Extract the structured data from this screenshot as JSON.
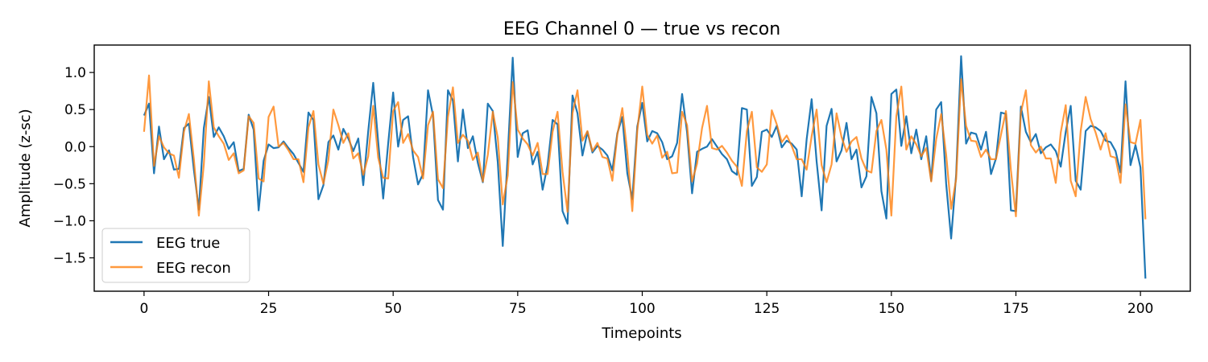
{
  "chart_data": {
    "type": "line",
    "title": "EEG Channel 0 — true vs recon",
    "xlabel": "Timepoints",
    "ylabel": "Amplitude (z-sc)",
    "xlim": [
      -10,
      210
    ],
    "ylim": [
      -1.95,
      1.37
    ],
    "xticks": [
      0,
      25,
      50,
      75,
      100,
      125,
      150,
      175,
      200
    ],
    "yticks": [
      -1.5,
      -1.0,
      -0.5,
      0.0,
      0.5,
      1.0
    ],
    "ytick_labels": [
      "−1.5",
      "−1.0",
      "−0.5",
      "0.0",
      "0.5",
      "1.0"
    ],
    "legend_position": "lower-left",
    "series": [
      {
        "name": "EEG true",
        "color": "#1f77b4",
        "values": [
          0.42,
          0.58,
          -0.36,
          0.27,
          -0.17,
          -0.05,
          -0.31,
          -0.3,
          0.25,
          0.31,
          -0.31,
          -0.85,
          0.25,
          0.67,
          0.13,
          0.26,
          0.14,
          -0.03,
          0.06,
          -0.33,
          -0.3,
          0.43,
          0.23,
          -0.86,
          -0.19,
          0.03,
          -0.02,
          -0.01,
          0.07,
          -0.02,
          -0.1,
          -0.22,
          -0.34,
          0.46,
          0.36,
          -0.71,
          -0.52,
          0.06,
          0.15,
          -0.04,
          0.24,
          0.11,
          -0.06,
          0.11,
          -0.52,
          0.21,
          0.86,
          0.06,
          -0.7,
          0.04,
          0.73,
          0.0,
          0.36,
          0.41,
          -0.14,
          -0.51,
          -0.37,
          0.76,
          0.42,
          -0.72,
          -0.85,
          0.76,
          0.62,
          -0.2,
          0.5,
          -0.02,
          0.14,
          -0.22,
          -0.48,
          0.58,
          0.48,
          -0.21,
          -1.34,
          -0.11,
          1.2,
          -0.14,
          0.18,
          0.22,
          -0.24,
          -0.07,
          -0.58,
          -0.25,
          0.36,
          0.3,
          -0.87,
          -1.04,
          0.69,
          0.45,
          -0.12,
          0.2,
          -0.08,
          0.01,
          -0.04,
          -0.12,
          -0.32,
          0.18,
          0.4,
          -0.36,
          -0.71,
          0.27,
          0.59,
          0.07,
          0.21,
          0.18,
          0.06,
          -0.17,
          -0.13,
          0.05,
          0.71,
          0.19,
          -0.63,
          -0.07,
          -0.03,
          0.0,
          0.1,
          0.0,
          -0.1,
          -0.17,
          -0.33,
          -0.38,
          0.52,
          0.5,
          -0.53,
          -0.41,
          0.2,
          0.23,
          0.13,
          0.28,
          -0.01,
          0.08,
          0.04,
          -0.04,
          -0.67,
          0.1,
          0.64,
          -0.2,
          -0.86,
          0.28,
          0.51,
          -0.2,
          -0.05,
          0.32,
          -0.17,
          -0.04,
          -0.55,
          -0.4,
          0.67,
          0.45,
          -0.6,
          -0.97,
          0.71,
          0.77,
          0.01,
          0.41,
          -0.09,
          0.23,
          -0.17,
          0.14,
          -0.46,
          0.5,
          0.6,
          -0.5,
          -1.24,
          -0.38,
          1.22,
          0.04,
          0.19,
          0.17,
          -0.04,
          0.2,
          -0.37,
          -0.16,
          0.46,
          0.44,
          -0.86,
          -0.87,
          0.54,
          0.2,
          0.06,
          0.17,
          -0.09,
          -0.01,
          0.03,
          -0.06,
          -0.27,
          0.2,
          0.55,
          -0.46,
          -0.58,
          0.21,
          0.28,
          0.26,
          0.21,
          0.08,
          0.06,
          -0.06,
          -0.35,
          0.88,
          -0.25,
          0.02,
          -0.28,
          -1.78
        ]
      },
      {
        "name": "EEG recon",
        "color": "#ff7f0e",
        "values": [
          0.2,
          0.96,
          -0.26,
          0.14,
          -0.01,
          -0.09,
          -0.12,
          -0.42,
          0.2,
          0.44,
          -0.17,
          -0.93,
          -0.24,
          0.88,
          0.26,
          0.14,
          0.04,
          -0.18,
          -0.09,
          -0.36,
          -0.32,
          0.41,
          0.32,
          -0.43,
          -0.47,
          0.4,
          0.54,
          0.0,
          0.05,
          -0.05,
          -0.17,
          -0.17,
          -0.48,
          0.26,
          0.48,
          -0.24,
          -0.5,
          -0.18,
          0.5,
          0.29,
          0.05,
          0.18,
          -0.16,
          -0.09,
          -0.38,
          -0.13,
          0.55,
          -0.15,
          -0.42,
          -0.43,
          0.48,
          0.6,
          0.05,
          0.17,
          -0.05,
          -0.14,
          -0.43,
          0.29,
          0.47,
          -0.44,
          -0.56,
          0.4,
          0.8,
          0.05,
          0.16,
          0.08,
          -0.18,
          -0.08,
          -0.47,
          -0.11,
          0.47,
          0.12,
          -0.78,
          -0.39,
          0.87,
          0.23,
          0.11,
          0.03,
          -0.12,
          0.05,
          -0.37,
          -0.37,
          0.2,
          0.47,
          -0.34,
          -0.88,
          0.45,
          0.76,
          0.08,
          0.21,
          -0.06,
          0.05,
          -0.14,
          -0.16,
          -0.46,
          0.16,
          0.52,
          -0.08,
          -0.87,
          0.21,
          0.81,
          0.16,
          0.04,
          0.15,
          -0.15,
          -0.07,
          -0.36,
          -0.35,
          0.47,
          0.29,
          -0.47,
          -0.23,
          0.25,
          0.55,
          -0.02,
          -0.04,
          0.01,
          -0.08,
          -0.19,
          -0.27,
          -0.53,
          0.21,
          0.47,
          -0.28,
          -0.34,
          -0.24,
          0.49,
          0.3,
          0.06,
          0.15,
          0.01,
          -0.17,
          -0.17,
          -0.31,
          0.14,
          0.5,
          -0.25,
          -0.48,
          -0.24,
          0.45,
          0.13,
          -0.07,
          0.07,
          0.13,
          -0.16,
          -0.32,
          -0.35,
          0.21,
          0.36,
          -0.04,
          -0.93,
          0.41,
          0.81,
          -0.04,
          0.14,
          0.03,
          -0.13,
          -0.02,
          -0.47,
          0.1,
          0.44,
          -0.11,
          -0.84,
          -0.44,
          0.91,
          0.28,
          0.08,
          0.07,
          -0.14,
          -0.04,
          -0.17,
          -0.17,
          0.16,
          0.48,
          -0.32,
          -0.94,
          0.46,
          0.76,
          0.02,
          -0.08,
          0.0,
          -0.16,
          -0.16,
          -0.49,
          0.19,
          0.56,
          -0.46,
          -0.67,
          0.21,
          0.67,
          0.37,
          0.19,
          -0.04,
          0.18,
          -0.13,
          -0.15,
          -0.49,
          0.57,
          0.06,
          0.04,
          0.36,
          -0.98
        ]
      }
    ]
  }
}
